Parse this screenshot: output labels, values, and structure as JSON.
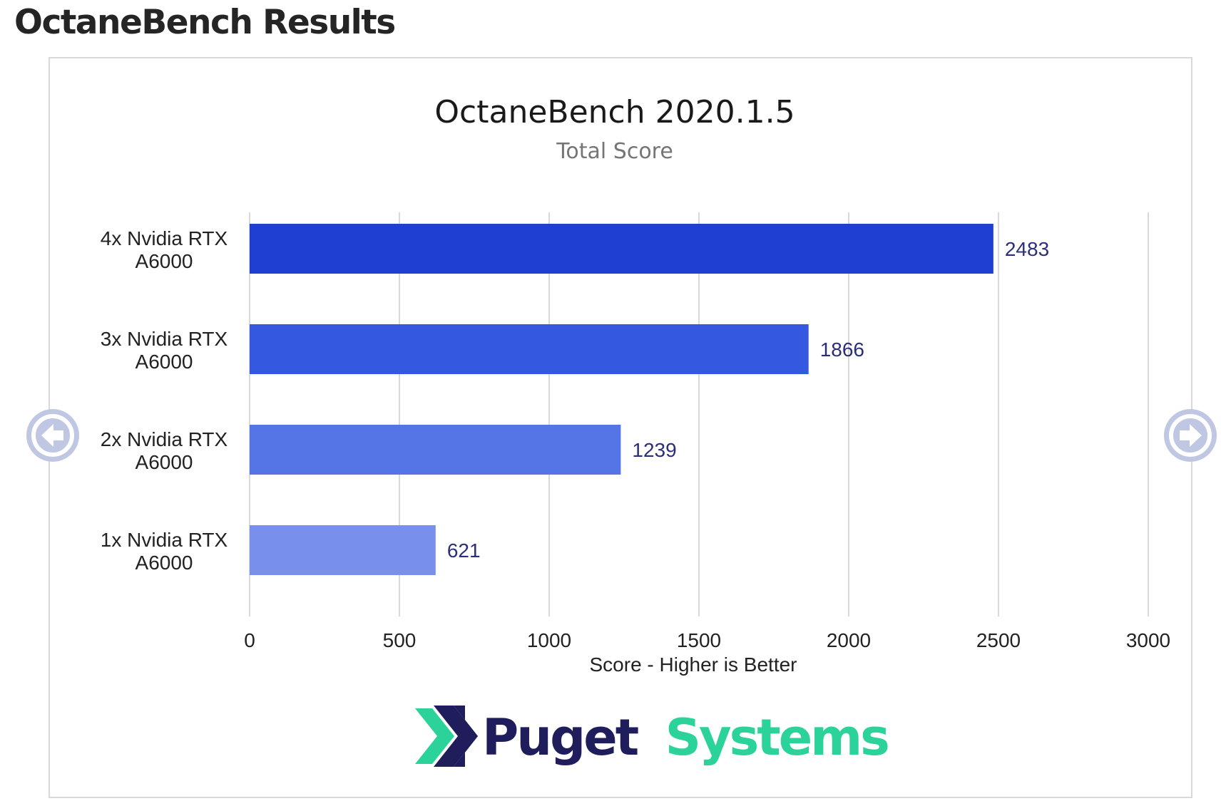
{
  "page": {
    "heading": "OctaneBench Results"
  },
  "chart_data": {
    "type": "bar",
    "orientation": "horizontal",
    "title": "OctaneBench 2020.1.5",
    "subtitle": "Total Score",
    "xlabel": "Score - Higher is Better",
    "ylabel": "",
    "xlim": [
      0,
      3000
    ],
    "xticks": [
      0,
      500,
      1000,
      1500,
      2000,
      2500,
      3000
    ],
    "grid": true,
    "categories": [
      [
        "4x Nvidia RTX",
        "A6000"
      ],
      [
        "3x Nvidia RTX",
        "A6000"
      ],
      [
        "2x Nvidia RTX",
        "A6000"
      ],
      [
        "1x Nvidia RTX",
        "A6000"
      ]
    ],
    "values": [
      2483,
      1866,
      1239,
      621
    ],
    "bar_colors": [
      "#1e3fd2",
      "#3558e0",
      "#5575e6",
      "#7890ec"
    ],
    "data_label_color": "#2b2f7a"
  },
  "logo": {
    "text_dark": "Puget",
    "text_green": "Systems",
    "colors": {
      "dark": "#1f1d5c",
      "green": "#2bd39a"
    }
  },
  "carousel": {
    "prev_icon": "left-arrow-icon",
    "next_icon": "right-arrow-icon",
    "arrow_color": "#bfc7e3"
  }
}
